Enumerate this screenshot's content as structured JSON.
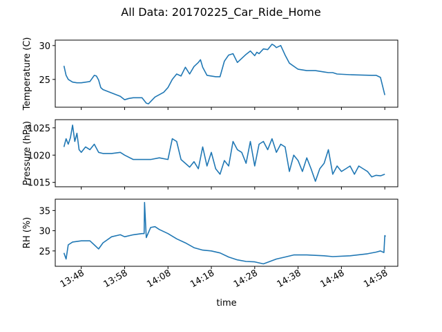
{
  "title": "All Data: 20170225_Car_Ride_Home",
  "xlabel": "time",
  "x_ticks": [
    "13:48",
    "13:58",
    "14:08",
    "14:18",
    "14:28",
    "14:38",
    "14:48",
    "14:58"
  ],
  "line_color": "#1f77b4",
  "chart_data": [
    {
      "type": "line",
      "ylabel": "Temperature (C)",
      "xlim": [
        "13:42",
        "15:01"
      ],
      "ylim": [
        20.9,
        30.8
      ],
      "y_ticks": [
        25,
        30
      ],
      "grid": false,
      "series": [
        {
          "x": [
            "13:44",
            "13:44.5",
            "13:45",
            "13:46",
            "13:47",
            "13:48",
            "13:50",
            "13:51",
            "13:51.5",
            "13:52",
            "13:52.5",
            "13:53",
            "13:55",
            "13:57",
            "13:58",
            "13:59",
            "14:00",
            "14:02",
            "14:03",
            "14:03.5",
            "14:05",
            "14:07",
            "14:08",
            "14:09",
            "14:10",
            "14:11",
            "14:12",
            "14:13",
            "14:14",
            "14:15",
            "14:15.5",
            "14:16",
            "14:17",
            "14:19",
            "14:20",
            "14:21",
            "14:22",
            "14:23",
            "14:24",
            "14:26",
            "14:27",
            "14:28",
            "14:28.5",
            "14:29",
            "14:30",
            "14:31",
            "14:32",
            "14:32.5",
            "14:33",
            "14:34",
            "14:35",
            "14:36",
            "14:38",
            "14:40",
            "14:42",
            "14:44",
            "14:45",
            "14:46",
            "14:47",
            "14:50",
            "14:55",
            "14:56",
            "14:57",
            "14:58"
          ],
          "y": [
            27.0,
            25.6,
            25.0,
            24.6,
            24.5,
            24.5,
            24.7,
            25.6,
            25.5,
            24.9,
            23.8,
            23.5,
            23.0,
            22.5,
            22.0,
            22.2,
            22.3,
            22.3,
            21.5,
            21.4,
            22.4,
            23.1,
            23.8,
            25.0,
            25.8,
            25.5,
            26.8,
            25.8,
            26.9,
            27.5,
            27.9,
            26.8,
            25.6,
            25.4,
            25.4,
            27.7,
            28.6,
            28.8,
            27.5,
            28.7,
            29.2,
            28.5,
            29.0,
            28.8,
            29.5,
            29.4,
            30.2,
            30.0,
            29.7,
            30.0,
            28.6,
            27.4,
            26.5,
            26.3,
            26.3,
            26.1,
            26.0,
            26.0,
            25.8,
            25.7,
            25.6,
            25.6,
            25.3,
            22.7
          ]
        }
      ]
    },
    {
      "type": "line",
      "ylabel": "Pressure (hPa)",
      "xlim": [
        "13:42",
        "15:01"
      ],
      "ylim": [
        1014.2,
        1026.5
      ],
      "y_ticks": [
        1015,
        1020,
        1025
      ],
      "grid": false,
      "series": [
        {
          "x": [
            "13:44",
            "13:44.5",
            "13:45",
            "13:45.5",
            "13:46",
            "13:46.5",
            "13:47",
            "13:47.5",
            "13:48",
            "13:49",
            "13:50",
            "13:51",
            "13:52",
            "13:53",
            "13:55",
            "13:57",
            "13:58",
            "14:00",
            "14:02",
            "14:04",
            "14:06",
            "14:08",
            "14:09",
            "14:10",
            "14:11",
            "14:12",
            "14:13",
            "14:14",
            "14:15",
            "14:16",
            "14:17",
            "14:18",
            "14:19",
            "14:20",
            "14:21",
            "14:22",
            "14:23",
            "14:24",
            "14:25",
            "14:26",
            "14:27",
            "14:28",
            "14:29",
            "14:30",
            "14:31",
            "14:32",
            "14:33",
            "14:34",
            "14:35",
            "14:36",
            "14:37",
            "14:38",
            "14:39",
            "14:40",
            "14:41",
            "14:42",
            "14:43",
            "14:44",
            "14:45",
            "14:46",
            "14:47",
            "14:48",
            "14:49",
            "14:50",
            "14:51",
            "14:52",
            "14:53",
            "14:54",
            "14:55",
            "14:56",
            "14:57",
            "14:58"
          ],
          "y": [
            1021.5,
            1023.0,
            1022.0,
            1023.2,
            1025.5,
            1022.5,
            1024.0,
            1021.0,
            1020.5,
            1021.5,
            1021.0,
            1022.0,
            1020.5,
            1020.3,
            1020.3,
            1020.5,
            1020.0,
            1019.2,
            1019.2,
            1019.2,
            1019.5,
            1019.2,
            1023.0,
            1022.5,
            1019.2,
            1018.5,
            1017.8,
            1018.8,
            1017.5,
            1021.5,
            1018.0,
            1020.5,
            1017.5,
            1016.5,
            1019.0,
            1018.0,
            1022.5,
            1021.0,
            1020.5,
            1018.5,
            1022.5,
            1018.0,
            1022.0,
            1022.5,
            1021.0,
            1023.0,
            1020.5,
            1022.0,
            1021.5,
            1017.0,
            1020.0,
            1019.0,
            1017.0,
            1019.5,
            1017.5,
            1015.2,
            1017.5,
            1018.5,
            1021.0,
            1016.5,
            1018.0,
            1017.0,
            1017.5,
            1018.0,
            1016.5,
            1018.0,
            1017.5,
            1017.0,
            1016.0,
            1016.3,
            1016.2,
            1016.5
          ]
        }
      ]
    },
    {
      "type": "line",
      "ylabel": "RH (%)",
      "xlim": [
        "13:42",
        "15:01"
      ],
      "ylim": [
        21.2,
        37.8
      ],
      "y_ticks": [
        25,
        30,
        35
      ],
      "grid": false,
      "series": [
        {
          "x": [
            "13:44",
            "13:44.5",
            "13:45",
            "13:46",
            "13:48",
            "13:50",
            "13:51",
            "13:52",
            "13:53",
            "13:55",
            "13:57",
            "13:58",
            "14:00",
            "14:02",
            "14:02.5",
            "14:02.6",
            "14:03",
            "14:04",
            "14:05",
            "14:06",
            "14:08",
            "14:10",
            "14:12",
            "14:14",
            "14:16",
            "14:18",
            "14:20",
            "14:22",
            "14:24",
            "14:26",
            "14:28",
            "14:30",
            "14:33",
            "14:35",
            "14:37",
            "14:40",
            "14:44",
            "14:46",
            "14:50",
            "14:54",
            "14:56",
            "14:57",
            "14:57.8",
            "14:58",
            "14:58.2"
          ],
          "y": [
            24.5,
            23.0,
            26.5,
            27.2,
            27.5,
            27.5,
            26.5,
            25.5,
            27.0,
            28.5,
            29.0,
            28.5,
            29.0,
            29.3,
            29.3,
            37.0,
            28.3,
            30.8,
            31.0,
            30.3,
            29.3,
            28.0,
            27.0,
            25.8,
            25.2,
            25.0,
            24.5,
            23.5,
            22.8,
            22.4,
            22.3,
            21.8,
            23.0,
            23.5,
            24.0,
            24.0,
            23.8,
            23.6,
            23.8,
            24.3,
            24.7,
            25.0,
            24.6,
            28.8,
            28.6
          ]
        }
      ]
    }
  ]
}
